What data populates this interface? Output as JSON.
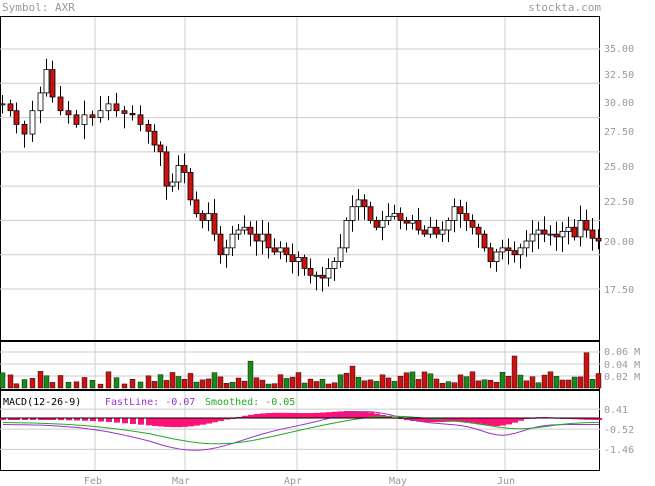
{
  "header": {
    "symbol_label": "Symbol: AXR",
    "site": "stockta.com"
  },
  "price_axis": {
    "ticks": [
      "35.00",
      "32.50",
      "30.00",
      "27.50",
      "25.00",
      "22.50",
      "20.00",
      "17.50"
    ],
    "values": [
      35,
      32.5,
      30,
      27.5,
      25,
      22.5,
      20,
      17.5
    ]
  },
  "volume_axis": {
    "ticks": [
      "0.06 M",
      "0.04 M",
      "0.02 M"
    ],
    "values": [
      0.06,
      0.04,
      0.02
    ]
  },
  "macd": {
    "label": "MACD(12-26-9)",
    "fast_label": "FastLine: -0.07",
    "smooth_label": "Smoothed: -0.05",
    "ticks": [
      "0.41",
      "-0.52",
      "-1.46"
    ],
    "values": [
      0.41,
      -0.52,
      -1.46
    ]
  },
  "x_axis": {
    "months": [
      "Feb",
      "Mar",
      "Apr",
      "May",
      "Jun"
    ]
  },
  "colors": {
    "up": "#1a8a1a",
    "down": "#cc1111",
    "hist": "#ff1177",
    "fast": "#9933cc",
    "smooth": "#22aa22",
    "grid": "#cccccc"
  },
  "chart_data": {
    "type": "candlestick",
    "symbol": "AXR",
    "price_range": [
      15.5,
      36.5
    ],
    "key_points": [
      {
        "month": "Jan",
        "close": 31.0
      },
      {
        "month": "late Jan",
        "high": 34.0
      },
      {
        "month": "Feb",
        "close": 30.5
      },
      {
        "month": "Mar",
        "close": 22.0
      },
      {
        "month": "Apr",
        "low": 17.6
      },
      {
        "month": "late Apr",
        "high": 24.6
      },
      {
        "month": "May",
        "close": 22.0
      },
      {
        "month": "Jun",
        "low": 19.0
      },
      {
        "month": "late Jun",
        "close": 21.0
      }
    ],
    "macd_fast": -0.07,
    "macd_smoothed": -0.05
  }
}
